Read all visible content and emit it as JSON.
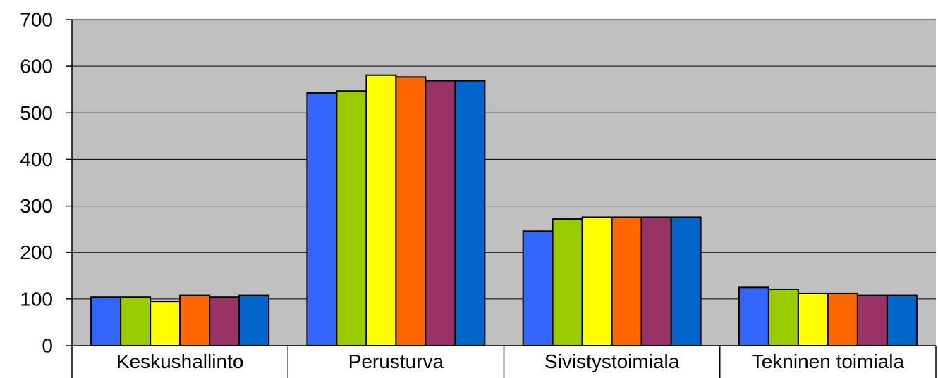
{
  "chart_data": {
    "type": "bar",
    "categories": [
      "Keskushallinto",
      "Perusturva",
      "Sivistystoimiala",
      "Tekninen toimiala"
    ],
    "series": [
      {
        "color": "#3366FF",
        "values": [
          104,
          543,
          246,
          125
        ]
      },
      {
        "color": "#99CC00",
        "values": [
          104,
          547,
          272,
          121
        ]
      },
      {
        "color": "#FFFF00",
        "values": [
          95,
          581,
          276,
          112
        ]
      },
      {
        "color": "#FF6600",
        "values": [
          108,
          577,
          276,
          112
        ]
      },
      {
        "color": "#993366",
        "values": [
          104,
          569,
          276,
          108
        ]
      },
      {
        "color": "#0066CC",
        "values": [
          108,
          569,
          276,
          108
        ]
      }
    ],
    "yticks": [
      "0",
      "100",
      "200",
      "300",
      "400",
      "500",
      "600",
      "700"
    ],
    "ylim": [
      0,
      700
    ],
    "grid": true,
    "legend": "none",
    "plot_background": "#C0C0C0"
  }
}
